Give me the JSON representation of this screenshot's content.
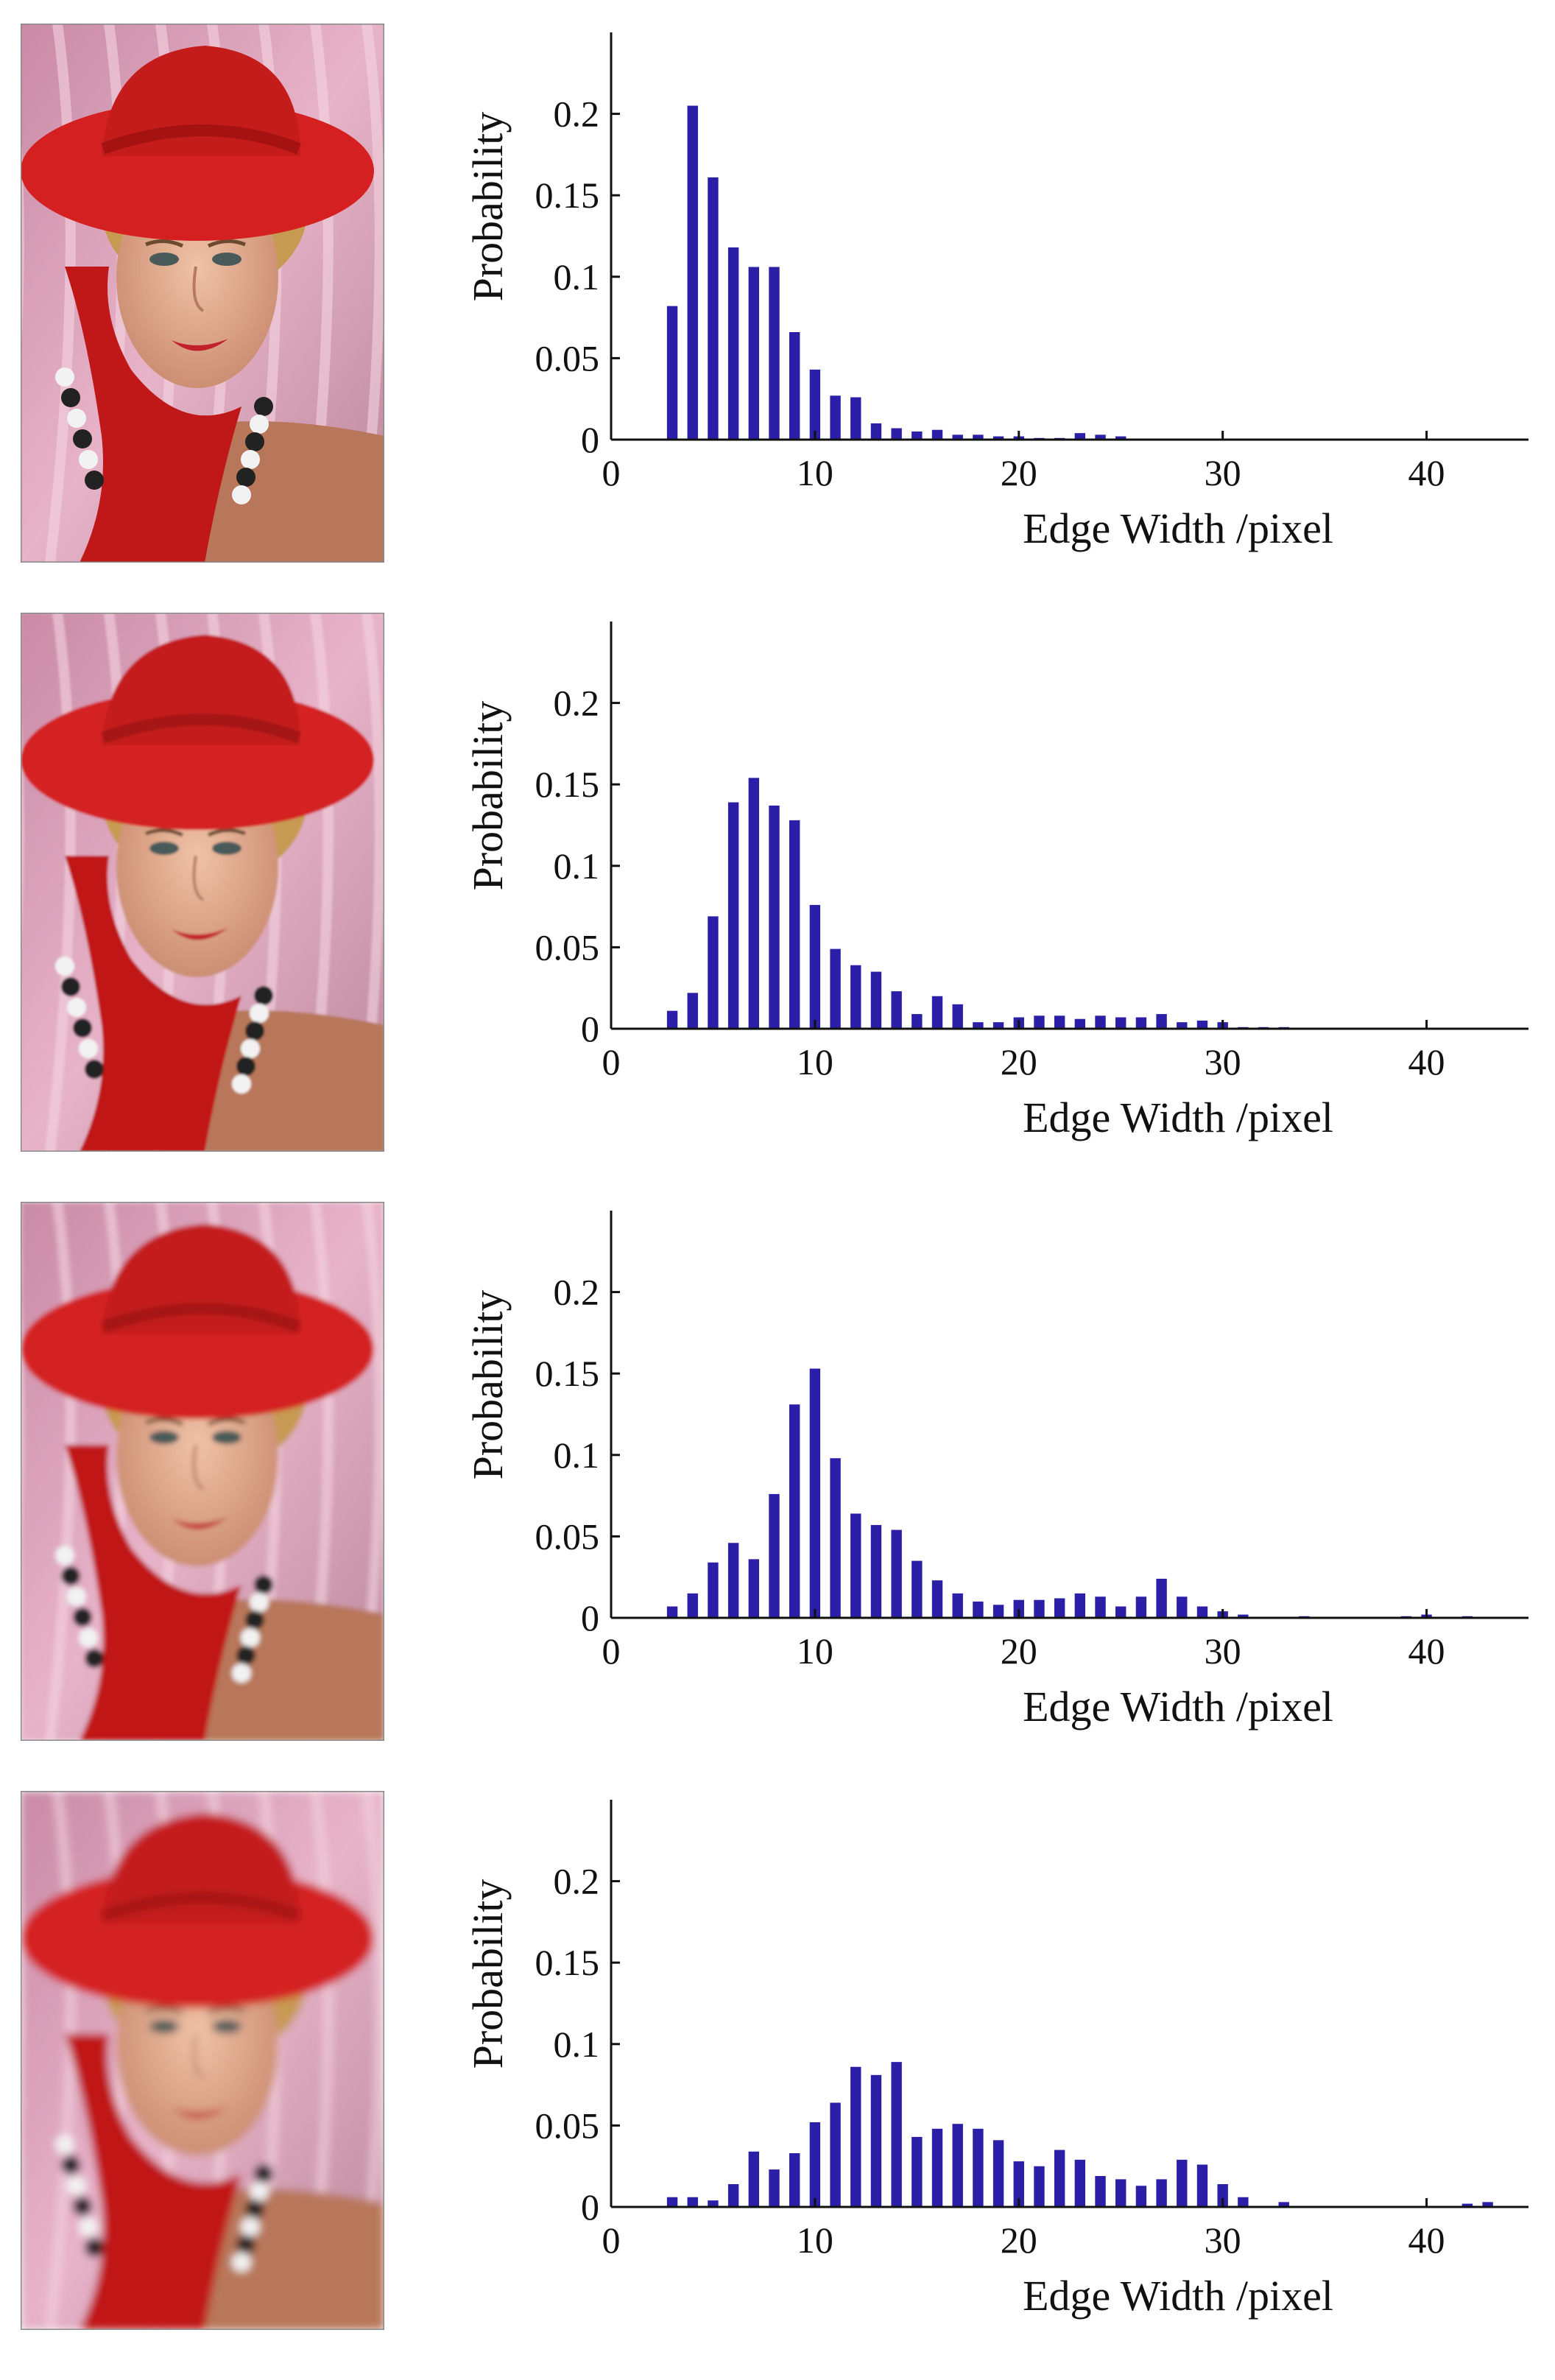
{
  "figure": {
    "panels": [
      {
        "id": "panel-1",
        "photo_label": "portrait with red hat (sharp)",
        "blur": 0
      },
      {
        "id": "panel-2",
        "photo_label": "portrait with red hat (blurred level 1)",
        "blur": 1.6
      },
      {
        "id": "panel-3",
        "photo_label": "portrait with red hat (blurred level 2)",
        "blur": 3.2
      },
      {
        "id": "panel-4",
        "photo_label": "portrait with red hat (blurred level 3)",
        "blur": 5.5
      }
    ]
  },
  "colors": {
    "bar": "#2b1fa8",
    "axis": "#111111",
    "hat": "#d42020",
    "skin": "#e3a98c",
    "background_pink": "#e7b3c8"
  },
  "chart_data": [
    {
      "type": "bar",
      "xlabel": "Edge Width /pixel",
      "ylabel": "Probability",
      "xlim": [
        0,
        45
      ],
      "ylim": [
        0,
        0.25
      ],
      "xticks": [
        "0",
        "10",
        "20",
        "30",
        "40"
      ],
      "yticks": [
        "0",
        "0.05",
        "0.1",
        "0.15",
        "0.2"
      ],
      "x": [
        3,
        4,
        5,
        6,
        7,
        8,
        9,
        10,
        11,
        12,
        13,
        14,
        15,
        16,
        17,
        18,
        19,
        20,
        21,
        22,
        23,
        24,
        25
      ],
      "values": [
        0.082,
        0.205,
        0.161,
        0.118,
        0.106,
        0.106,
        0.066,
        0.043,
        0.027,
        0.026,
        0.01,
        0.007,
        0.005,
        0.006,
        0.003,
        0.003,
        0.002,
        0.002,
        0.001,
        0.001,
        0.004,
        0.003,
        0.002
      ]
    },
    {
      "type": "bar",
      "xlabel": "Edge Width /pixel",
      "ylabel": "Probability",
      "xlim": [
        0,
        45
      ],
      "ylim": [
        0,
        0.25
      ],
      "xticks": [
        "0",
        "10",
        "20",
        "30",
        "40"
      ],
      "yticks": [
        "0",
        "0.05",
        "0.1",
        "0.15",
        "0.2"
      ],
      "x": [
        3,
        4,
        5,
        6,
        7,
        8,
        9,
        10,
        11,
        12,
        13,
        14,
        15,
        16,
        17,
        18,
        19,
        20,
        21,
        22,
        23,
        24,
        25,
        26,
        27,
        28,
        29,
        30,
        31,
        32,
        33
      ],
      "values": [
        0.011,
        0.022,
        0.069,
        0.139,
        0.154,
        0.137,
        0.128,
        0.076,
        0.049,
        0.039,
        0.035,
        0.023,
        0.009,
        0.02,
        0.015,
        0.004,
        0.004,
        0.007,
        0.008,
        0.008,
        0.006,
        0.008,
        0.007,
        0.007,
        0.009,
        0.004,
        0.005,
        0.004,
        0.001,
        0.001,
        0.001
      ]
    },
    {
      "type": "bar",
      "xlabel": "Edge Width /pixel",
      "ylabel": "Probability",
      "xlim": [
        0,
        45
      ],
      "ylim": [
        0,
        0.25
      ],
      "xticks": [
        "0",
        "10",
        "20",
        "30",
        "40"
      ],
      "yticks": [
        "0",
        "0.05",
        "0.1",
        "0.15",
        "0.2"
      ],
      "x": [
        3,
        4,
        5,
        6,
        7,
        8,
        9,
        10,
        11,
        12,
        13,
        14,
        15,
        16,
        17,
        18,
        19,
        20,
        21,
        22,
        23,
        24,
        25,
        26,
        27,
        28,
        29,
        30,
        31,
        34,
        39,
        40,
        42
      ],
      "values": [
        0.007,
        0.015,
        0.034,
        0.046,
        0.036,
        0.076,
        0.131,
        0.153,
        0.098,
        0.064,
        0.057,
        0.054,
        0.035,
        0.023,
        0.015,
        0.01,
        0.008,
        0.011,
        0.011,
        0.012,
        0.015,
        0.013,
        0.007,
        0.013,
        0.024,
        0.013,
        0.007,
        0.004,
        0.002,
        0.001,
        0.001,
        0.002,
        0.001
      ]
    },
    {
      "type": "bar",
      "xlabel": "Edge Width /pixel",
      "ylabel": "Probability",
      "xlim": [
        0,
        45
      ],
      "ylim": [
        0,
        0.25
      ],
      "xticks": [
        "0",
        "10",
        "20",
        "30",
        "40"
      ],
      "yticks": [
        "0",
        "0.05",
        "0.1",
        "0.15",
        "0.2"
      ],
      "x": [
        3,
        4,
        5,
        6,
        7,
        8,
        9,
        10,
        11,
        12,
        13,
        14,
        15,
        16,
        17,
        18,
        19,
        20,
        21,
        22,
        23,
        24,
        25,
        26,
        27,
        28,
        29,
        30,
        31,
        33,
        42,
        43
      ],
      "values": [
        0.006,
        0.006,
        0.004,
        0.014,
        0.034,
        0.023,
        0.033,
        0.052,
        0.064,
        0.086,
        0.081,
        0.089,
        0.043,
        0.048,
        0.051,
        0.048,
        0.041,
        0.028,
        0.025,
        0.035,
        0.029,
        0.019,
        0.017,
        0.013,
        0.017,
        0.029,
        0.026,
        0.014,
        0.006,
        0.003,
        0.002,
        0.003
      ]
    }
  ]
}
